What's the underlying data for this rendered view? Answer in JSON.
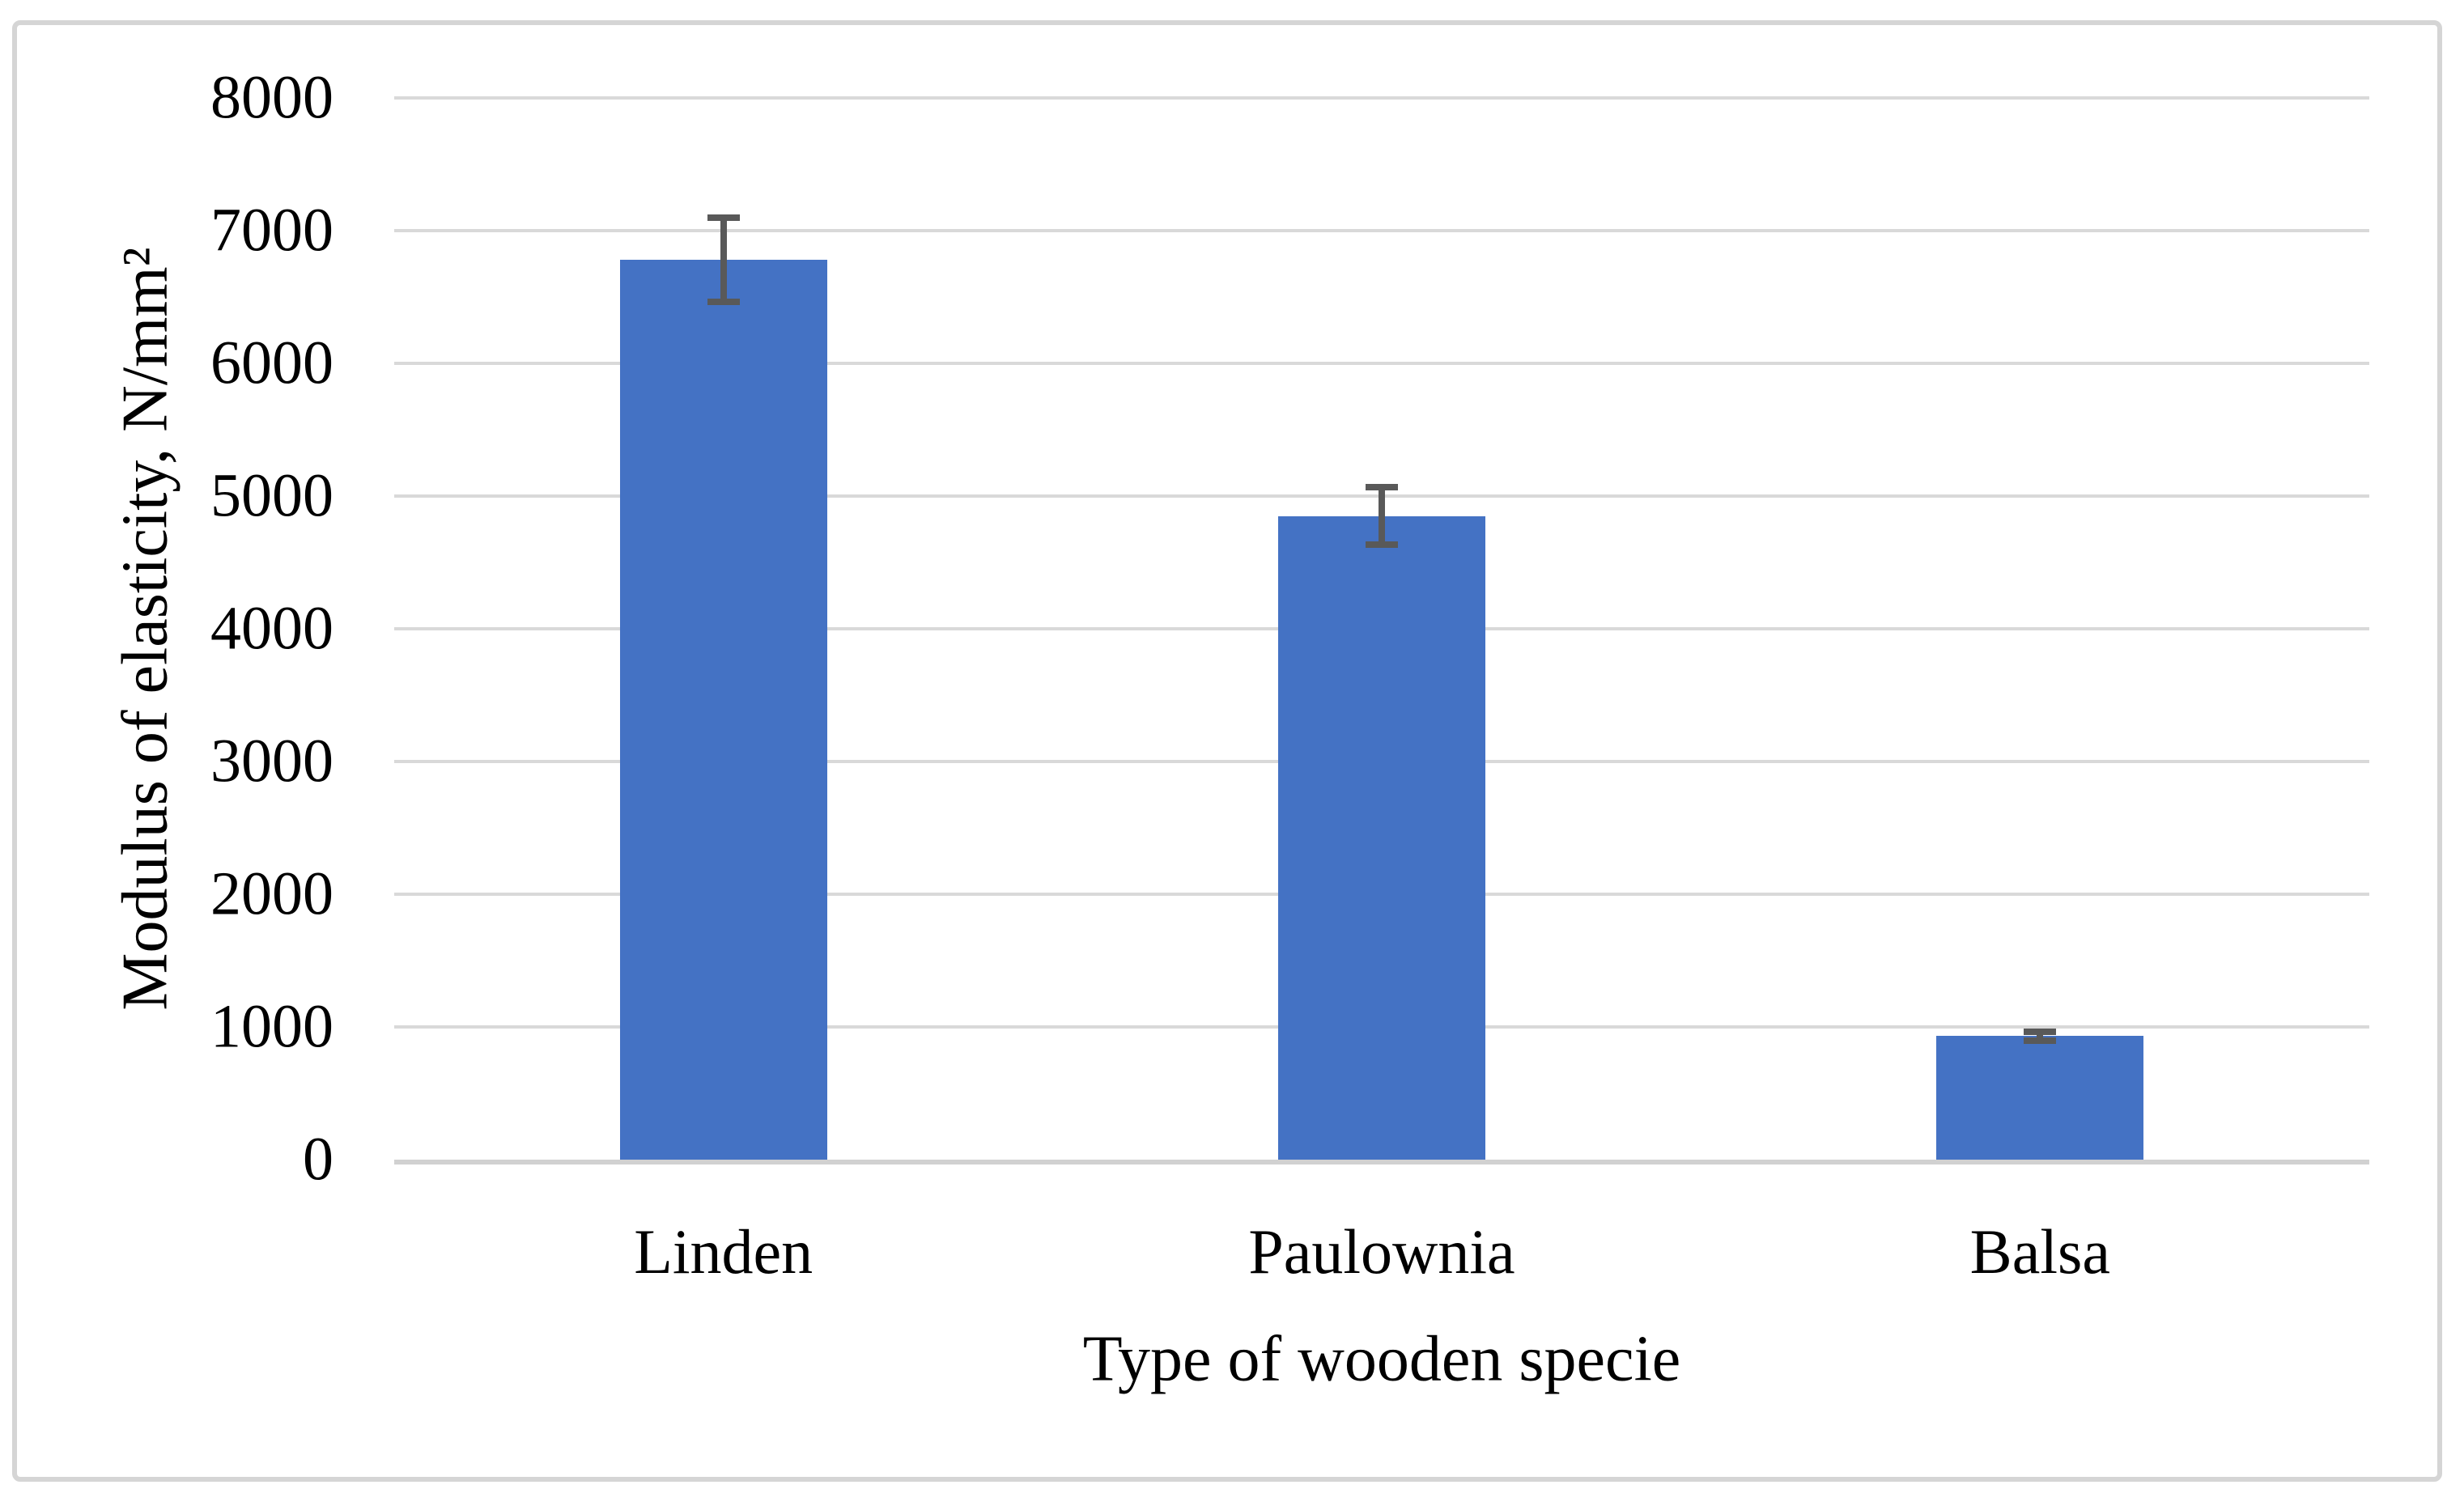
{
  "chart_data": {
    "type": "bar",
    "title": "",
    "categories": [
      "Linden",
      "Paulownia",
      "Balsa"
    ],
    "values": [
      6780,
      4850,
      930
    ],
    "error_bars": {
      "plus": [
        340,
        240,
        55
      ],
      "minus": [
        340,
        240,
        55
      ]
    },
    "xlabel": "Type of wooden specie",
    "ylabel": "Modulus of elasticity, N/mm²",
    "ylim": [
      0,
      8000
    ],
    "yticks": [
      0,
      1000,
      2000,
      3000,
      4000,
      5000,
      6000,
      7000,
      8000
    ],
    "ytick_labels": [
      "0",
      "1000",
      "2000",
      "3000",
      "4000",
      "5000",
      "6000",
      "7000",
      "8000"
    ],
    "grid": "horizontal",
    "legend": "none",
    "colors": {
      "bar": "#4472C4",
      "error_bar": "#595959",
      "gridline": "#D9D9D9",
      "axis_line": "#D1D1D1",
      "frame_border": "#D5D5D5",
      "text": "#000000",
      "background": "#FFFFFF"
    }
  }
}
